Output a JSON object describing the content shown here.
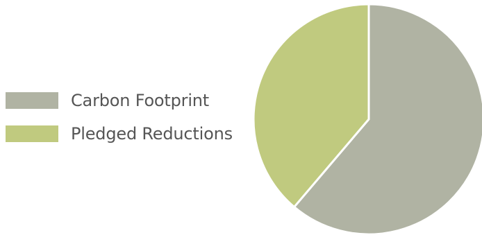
{
  "chart_data": {
    "type": "pie",
    "title": "",
    "legend_position": "left",
    "series": [
      {
        "name": "Carbon Footprint",
        "value": 61.2,
        "color": "#b0b3a3"
      },
      {
        "name": "Pledged Reductions",
        "value": 38.8,
        "color": "#c0ca7f"
      }
    ]
  }
}
